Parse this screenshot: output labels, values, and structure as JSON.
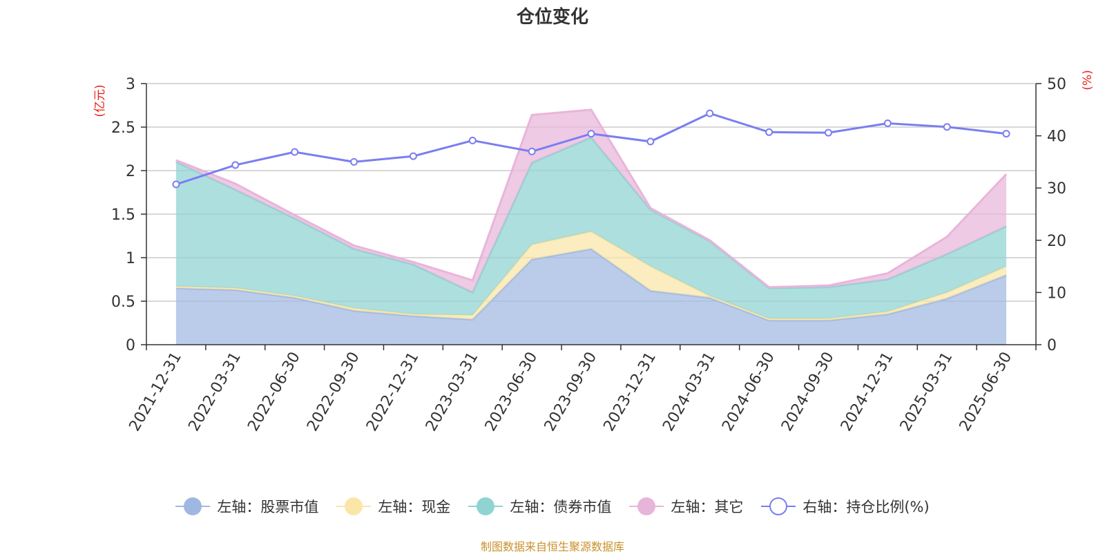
{
  "title": "仓位变化",
  "footer": "制图数据来自恒生聚源数据库",
  "left_unit": "(亿元)",
  "right_unit": "(%)",
  "legend": [
    {
      "label": "左轴：股票市值",
      "color": "#9fb8e2",
      "hollow": false
    },
    {
      "label": "左轴：现金",
      "color": "#fae6a7",
      "hollow": false
    },
    {
      "label": "左轴：债券市值",
      "color": "#8fd3d3",
      "hollow": false
    },
    {
      "label": "左轴：其它",
      "color": "#e8b5da",
      "hollow": false
    },
    {
      "label": "右轴：持仓比例(%)",
      "color": "#7a7ef0",
      "hollow": true
    }
  ],
  "chart_data": {
    "type": "area",
    "stacked": true,
    "title": "仓位变化",
    "categories": [
      "2021-12-31",
      "2022-03-31",
      "2022-06-30",
      "2022-09-30",
      "2022-12-31",
      "2023-03-31",
      "2023-06-30",
      "2023-09-30",
      "2023-12-31",
      "2024-03-31",
      "2024-06-30",
      "2024-09-30",
      "2024-12-31",
      "2025-03-31",
      "2025-06-30"
    ],
    "left_axis": {
      "unit": "(亿元)",
      "ylim": [
        0,
        3
      ],
      "ticks": [
        "0",
        "0.5",
        "1",
        "1.5",
        "2",
        "2.5",
        "3"
      ]
    },
    "right_axis": {
      "unit": "(%)",
      "ylim": [
        0,
        50
      ],
      "ticks": [
        "0",
        "10",
        "20",
        "30",
        "40",
        "50"
      ]
    },
    "series": [
      {
        "name": "左轴：股票市值",
        "axis": "left",
        "type": "area",
        "color": "#9fb8e2",
        "values": [
          0.65,
          0.63,
          0.54,
          0.39,
          0.33,
          0.29,
          0.98,
          1.1,
          0.62,
          0.54,
          0.28,
          0.28,
          0.35,
          0.53,
          0.8
        ]
      },
      {
        "name": "左轴：现金",
        "axis": "left",
        "type": "area",
        "color": "#fae6a7",
        "values": [
          0.02,
          0.02,
          0.02,
          0.03,
          0.02,
          0.05,
          0.17,
          0.2,
          0.28,
          0.02,
          0.02,
          0.02,
          0.03,
          0.07,
          0.1
        ]
      },
      {
        "name": "左轴：债券市值",
        "axis": "left",
        "type": "area",
        "color": "#8fd3d3",
        "values": [
          1.43,
          1.13,
          0.89,
          0.68,
          0.57,
          0.26,
          0.94,
          1.08,
          0.65,
          0.63,
          0.35,
          0.36,
          0.37,
          0.44,
          0.46
        ]
      },
      {
        "name": "左轴：其它",
        "axis": "left",
        "type": "area",
        "color": "#e8b5da",
        "values": [
          0.02,
          0.07,
          0.04,
          0.04,
          0.03,
          0.14,
          0.55,
          0.32,
          0.02,
          0.01,
          0.01,
          0.02,
          0.07,
          0.2,
          0.6
        ]
      },
      {
        "name": "右轴：持仓比例(%)",
        "axis": "right",
        "type": "line",
        "color": "#7a7ef0",
        "values": [
          30.7,
          34.4,
          36.9,
          35.0,
          36.1,
          39.1,
          37.0,
          40.4,
          38.9,
          44.3,
          40.7,
          40.6,
          42.4,
          41.7,
          40.4
        ]
      }
    ],
    "grid": true,
    "legend_position": "bottom"
  }
}
